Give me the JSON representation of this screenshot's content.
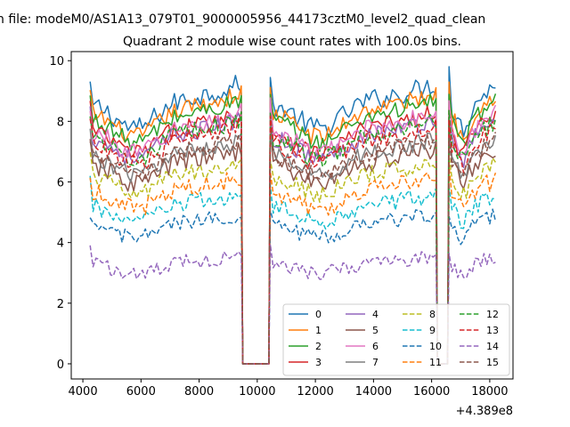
{
  "figure": {
    "suptitle": "n file: modeM0/AS1A13_079T01_9000005956_44173cztM0_level2_quad_clean",
    "title": "Quadrant 2 module wise count rates with 100.0s bins.",
    "x_offset_label": "+4.389e8"
  },
  "chart_data": {
    "type": "line",
    "title": "Quadrant 2 module wise count rates with 100.0s bins.",
    "xlabel": "",
    "ylabel": "",
    "xlim": [
      3600,
      18800
    ],
    "ylim": [
      -0.5,
      10.3
    ],
    "x_ticks": [
      4000,
      6000,
      8000,
      10000,
      12000,
      14000,
      16000,
      18000
    ],
    "y_ticks": [
      0,
      2,
      4,
      6,
      8,
      10
    ],
    "grid": false,
    "legend_position": "lower-right",
    "legend_columns": 4,
    "segments": [
      [
        4250,
        9450
      ],
      [
        10450,
        16150
      ],
      [
        16600,
        18200
      ]
    ],
    "gap_ranges": [
      [
        9450,
        10450
      ],
      [
        16150,
        16600
      ]
    ],
    "series": [
      {
        "name": "0",
        "color": "#1f77b4",
        "style": "solid",
        "base": 8.6,
        "noise": 0.35,
        "peak": 9.9
      },
      {
        "name": "1",
        "color": "#ff7f0e",
        "style": "solid",
        "base": 8.3,
        "noise": 0.3,
        "peak": 9.5
      },
      {
        "name": "2",
        "color": "#2ca02c",
        "style": "solid",
        "base": 8.1,
        "noise": 0.3,
        "peak": 9.2
      },
      {
        "name": "3",
        "color": "#d62728",
        "style": "solid",
        "base": 7.7,
        "noise": 0.3,
        "peak": 8.9
      },
      {
        "name": "4",
        "color": "#9467bd",
        "style": "solid",
        "base": 7.5,
        "noise": 0.3,
        "peak": 8.6
      },
      {
        "name": "5",
        "color": "#8c564b",
        "style": "solid",
        "base": 6.6,
        "noise": 0.35,
        "peak": 8.0
      },
      {
        "name": "6",
        "color": "#e377c2",
        "style": "solid",
        "base": 7.7,
        "noise": 0.3,
        "peak": 8.8
      },
      {
        "name": "7",
        "color": "#7f7f7f",
        "style": "solid",
        "base": 6.9,
        "noise": 0.3,
        "peak": 8.1
      },
      {
        "name": "8",
        "color": "#bcbd22",
        "style": "dashed",
        "base": 6.2,
        "noise": 0.3,
        "peak": 7.2
      },
      {
        "name": "9",
        "color": "#17becf",
        "style": "dashed",
        "base": 5.2,
        "noise": 0.3,
        "peak": 6.3
      },
      {
        "name": "10",
        "color": "#1f77b4",
        "style": "dashed",
        "base": 4.6,
        "noise": 0.25,
        "peak": 5.4
      },
      {
        "name": "11",
        "color": "#ff7f0e",
        "style": "dashed",
        "base": 5.7,
        "noise": 0.3,
        "peak": 6.6
      },
      {
        "name": "12",
        "color": "#2ca02c",
        "style": "dashed",
        "base": 7.5,
        "noise": 0.3,
        "peak": 8.5
      },
      {
        "name": "13",
        "color": "#d62728",
        "style": "dashed",
        "base": 7.3,
        "noise": 0.3,
        "peak": 8.3
      },
      {
        "name": "14",
        "color": "#9467bd",
        "style": "dashed",
        "base": 3.3,
        "noise": 0.25,
        "peak": 4.0
      },
      {
        "name": "15",
        "color": "#8c564b",
        "style": "dashed",
        "base": 6.9,
        "noise": 0.3,
        "peak": 7.9
      }
    ]
  }
}
